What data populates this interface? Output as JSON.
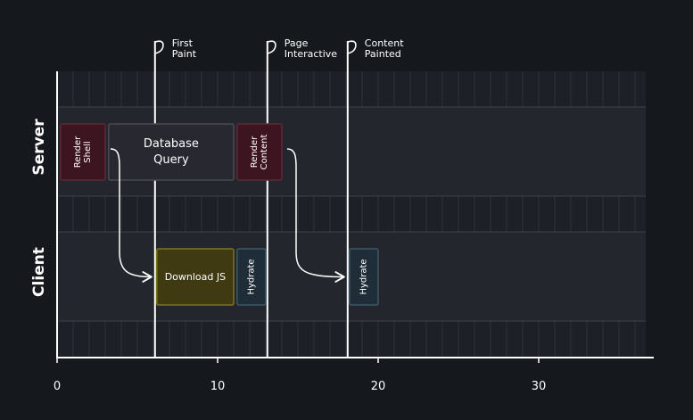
{
  "diagram": {
    "axis": {
      "ticks": [
        {
          "value": 0,
          "label": "0"
        },
        {
          "value": 10,
          "label": "10"
        },
        {
          "value": 20,
          "label": "20"
        },
        {
          "value": 30,
          "label": "30"
        }
      ]
    },
    "lanes": [
      {
        "id": "server",
        "label": "Server"
      },
      {
        "id": "client",
        "label": "Client"
      }
    ],
    "markers": [
      {
        "id": "first-paint",
        "x": 6.1,
        "label_lines": [
          "First",
          "Paint"
        ]
      },
      {
        "id": "page-interactive",
        "x": 13.1,
        "label_lines": [
          "Page",
          "Interactive"
        ]
      },
      {
        "id": "content-painted",
        "x": 18.1,
        "label_lines": [
          "Content",
          "Painted"
        ]
      }
    ],
    "tasks": [
      {
        "id": "render-shell",
        "lane": "server",
        "start": 0.1,
        "end": 3.0,
        "label_lines": [
          "Render",
          "Shell"
        ],
        "vertical": true,
        "fill": "#3d1520",
        "stroke": "#5e2a37"
      },
      {
        "id": "database-query",
        "lane": "server",
        "start": 3.1,
        "end": 11.0,
        "label_lines": [
          "Database",
          "Query"
        ],
        "vertical": false,
        "fill": "#272830",
        "stroke": "#4a4b55"
      },
      {
        "id": "render-content",
        "lane": "server",
        "start": 11.1,
        "end": 14.0,
        "label_lines": [
          "Render",
          "Content"
        ],
        "vertical": true,
        "fill": "#3d1520",
        "stroke": "#5e2a37"
      },
      {
        "id": "download-js",
        "lane": "client",
        "start": 6.1,
        "end": 11.0,
        "label_lines": [
          "Download JS"
        ],
        "vertical": false,
        "fill": "#3f3a12",
        "stroke": "#7e7420"
      },
      {
        "id": "hydrate-1",
        "lane": "client",
        "start": 11.1,
        "end": 13.0,
        "label_lines": [
          "Hydrate"
        ],
        "vertical": true,
        "fill": "#1f2d38",
        "stroke": "#3f5766"
      },
      {
        "id": "hydrate-2",
        "lane": "client",
        "start": 18.1,
        "end": 20.0,
        "label_lines": [
          "Hydrate"
        ],
        "vertical": true,
        "fill": "#1f2d38",
        "stroke": "#3f5766"
      }
    ],
    "arrows": [
      {
        "id": "shell-to-download",
        "from": "render-shell",
        "to": "download-js"
      },
      {
        "id": "content-to-hydrate",
        "from": "render-content",
        "to": "hydrate-2"
      }
    ]
  }
}
